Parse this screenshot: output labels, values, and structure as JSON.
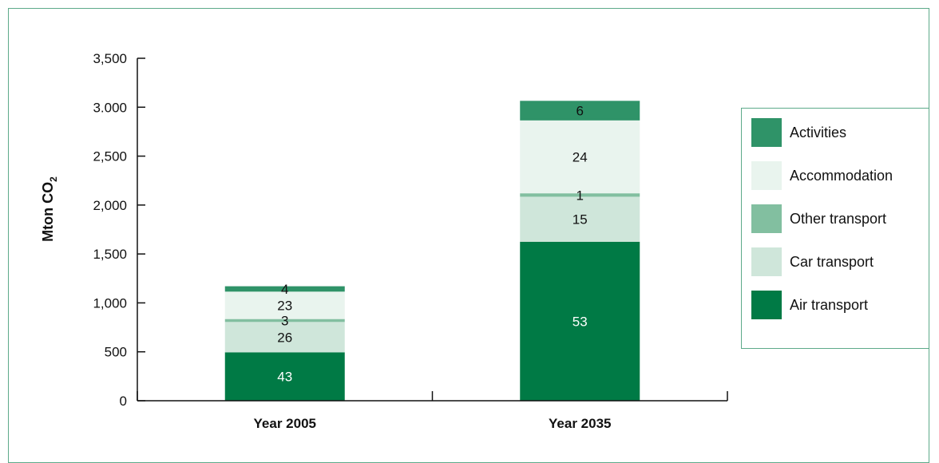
{
  "chart_data": {
    "type": "bar",
    "stacked": true,
    "categories": [
      "Year 2005",
      "Year 2035"
    ],
    "ylabel": "Mton CO",
    "ylabel_subscript": "2",
    "ylim": [
      0,
      3500
    ],
    "yticks": [
      0,
      500,
      1000,
      1500,
      2000,
      2500,
      3000,
      3500
    ],
    "ytick_labels": [
      "0",
      "500",
      "1,000",
      "1,500",
      "2,000",
      "2,500",
      "3.000",
      "3,500"
    ],
    "grid": false,
    "legend_position": "right",
    "series": [
      {
        "name": "Air transport",
        "color": "#007a45",
        "label_color": "#ffffff",
        "values": [
          495,
          1625
        ],
        "labels": [
          "43",
          "53"
        ]
      },
      {
        "name": "Car transport",
        "color": "#cfe6da",
        "label_color": "#111111",
        "values": [
          310,
          460
        ],
        "labels": [
          "26",
          "15"
        ]
      },
      {
        "name": "Other transport",
        "color": "#82bfa0",
        "label_color": "#111111",
        "values": [
          30,
          35
        ],
        "labels": [
          "3",
          "1"
        ]
      },
      {
        "name": "Accommodation",
        "color": "#e9f4ee",
        "label_color": "#111111",
        "values": [
          280,
          745
        ],
        "labels": [
          "23",
          "24"
        ]
      },
      {
        "name": "Activities",
        "color": "#2f9368",
        "label_color": "#111111",
        "values": [
          55,
          200
        ],
        "labels": [
          "4",
          "6"
        ]
      }
    ],
    "legend_order": [
      "Activities",
      "Accommodation",
      "Other transport",
      "Car transport",
      "Air transport"
    ]
  }
}
